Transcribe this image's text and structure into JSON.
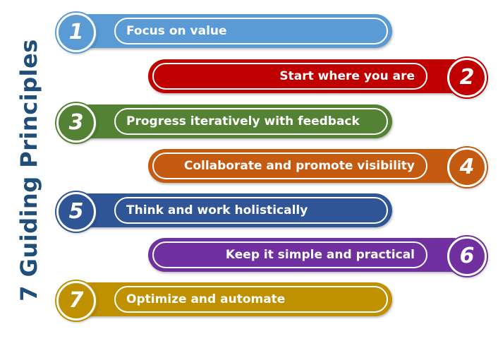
{
  "title": "7 Guiding Principles",
  "principles": [
    {
      "number": "1",
      "label": "Focus on value",
      "color": "#5b9bd5",
      "side": "left"
    },
    {
      "number": "2",
      "label": "Start where you are",
      "color": "#c00000",
      "side": "right"
    },
    {
      "number": "3",
      "label": "Progress iteratively with feedback",
      "color": "#548235",
      "side": "left"
    },
    {
      "number": "4",
      "label": "Collaborate and promote visibility",
      "color": "#c55a11",
      "side": "right"
    },
    {
      "number": "5",
      "label": "Think and work holistically",
      "color": "#2f5597",
      "side": "left"
    },
    {
      "number": "6",
      "label": "Keep it simple and practical",
      "color": "#7030a0",
      "side": "right"
    },
    {
      "number": "7",
      "label": "Optimize and automate",
      "color": "#bf9000",
      "side": "left"
    }
  ]
}
